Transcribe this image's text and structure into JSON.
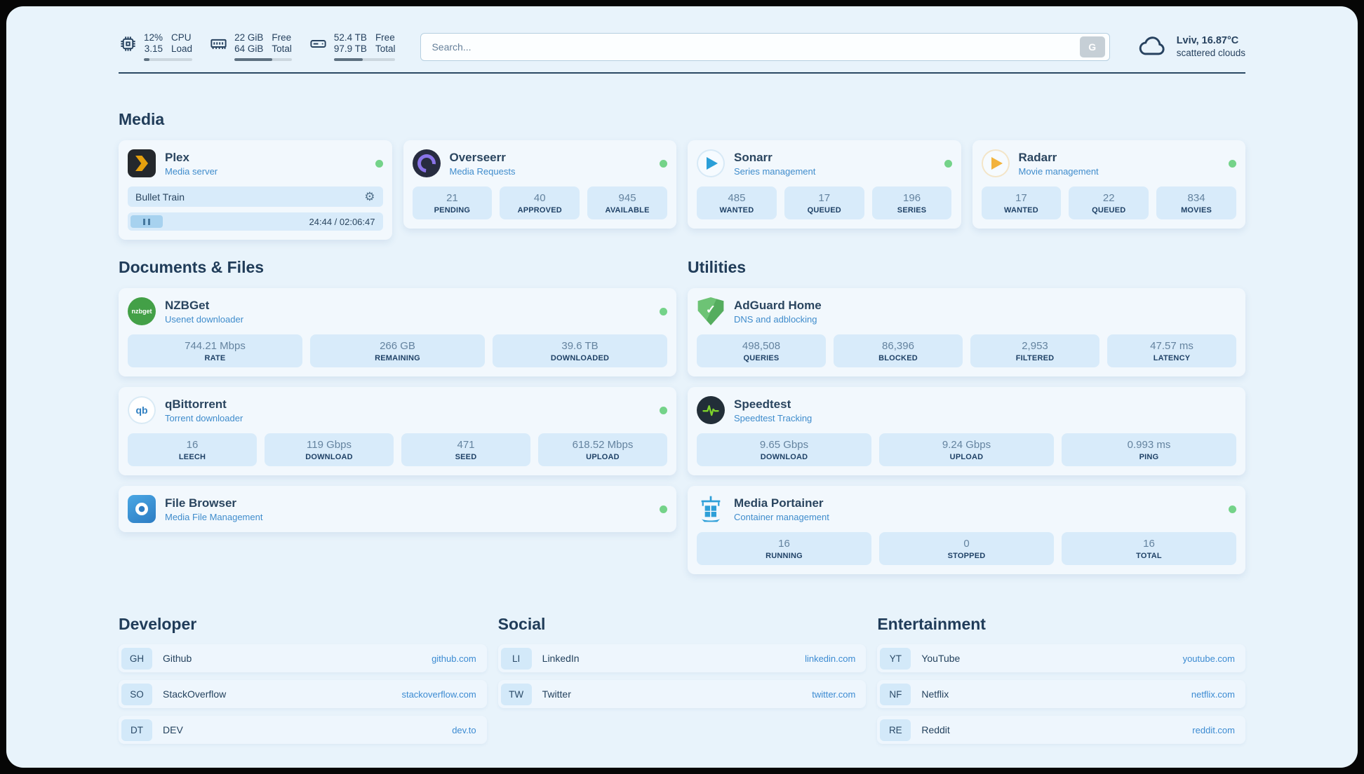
{
  "topbar": {
    "cpu": {
      "value1": "12%",
      "label1": "CPU",
      "value2": "3.15",
      "label2": "Load",
      "progress": 12
    },
    "memory": {
      "value1": "22 GiB",
      "label1": "Free",
      "value2": "64 GiB",
      "label2": "Total",
      "progress": 66
    },
    "disk": {
      "value1": "52.4 TB",
      "label1": "Free",
      "value2": "97.9 TB",
      "label2": "Total",
      "progress": 47
    },
    "search": {
      "placeholder": "Search...",
      "button_label": "G"
    },
    "weather": {
      "location": "Lviv, 16.87°C",
      "condition": "scattered clouds"
    }
  },
  "sections": {
    "media": "Media",
    "documents": "Documents & Files",
    "utilities": "Utilities",
    "developer": "Developer",
    "social": "Social",
    "entertainment": "Entertainment"
  },
  "apps": {
    "plex": {
      "title": "Plex",
      "subtitle": "Media server",
      "now_playing": "Bullet Train",
      "time": "24:44 / 02:06:47"
    },
    "overseerr": {
      "title": "Overseerr",
      "subtitle": "Media Requests",
      "stats": [
        {
          "value": "21",
          "label": "PENDING"
        },
        {
          "value": "40",
          "label": "APPROVED"
        },
        {
          "value": "945",
          "label": "AVAILABLE"
        }
      ]
    },
    "sonarr": {
      "title": "Sonarr",
      "subtitle": "Series management",
      "stats": [
        {
          "value": "485",
          "label": "WANTED"
        },
        {
          "value": "17",
          "label": "QUEUED"
        },
        {
          "value": "196",
          "label": "SERIES"
        }
      ]
    },
    "radarr": {
      "title": "Radarr",
      "subtitle": "Movie management",
      "stats": [
        {
          "value": "17",
          "label": "WANTED"
        },
        {
          "value": "22",
          "label": "QUEUED"
        },
        {
          "value": "834",
          "label": "MOVIES"
        }
      ]
    },
    "nzbget": {
      "title": "NZBGet",
      "subtitle": "Usenet downloader",
      "icon_text": "nzbget",
      "stats": [
        {
          "value": "744.21 Mbps",
          "label": "RATE"
        },
        {
          "value": "266 GB",
          "label": "REMAINING"
        },
        {
          "value": "39.6 TB",
          "label": "DOWNLOADED"
        }
      ]
    },
    "qbittorrent": {
      "title": "qBittorrent",
      "subtitle": "Torrent downloader",
      "icon_text": "qb",
      "stats": [
        {
          "value": "16",
          "label": "LEECH"
        },
        {
          "value": "119 Gbps",
          "label": "DOWNLOAD"
        },
        {
          "value": "471",
          "label": "SEED"
        },
        {
          "value": "618.52 Mbps",
          "label": "UPLOAD"
        }
      ]
    },
    "filebrowser": {
      "title": "File Browser",
      "subtitle": "Media File Management"
    },
    "adguard": {
      "title": "AdGuard Home",
      "subtitle": "DNS and adblocking",
      "stats": [
        {
          "value": "498,508",
          "label": "QUERIES"
        },
        {
          "value": "86,396",
          "label": "BLOCKED"
        },
        {
          "value": "2,953",
          "label": "FILTERED"
        },
        {
          "value": "47.57 ms",
          "label": "LATENCY"
        }
      ]
    },
    "speedtest": {
      "title": "Speedtest",
      "subtitle": "Speedtest Tracking",
      "stats": [
        {
          "value": "9.65 Gbps",
          "label": "DOWNLOAD"
        },
        {
          "value": "9.24 Gbps",
          "label": "UPLOAD"
        },
        {
          "value": "0.993 ms",
          "label": "PING"
        }
      ]
    },
    "portainer": {
      "title": "Media Portainer",
      "subtitle": "Container management",
      "stats": [
        {
          "value": "16",
          "label": "RUNNING"
        },
        {
          "value": "0",
          "label": "STOPPED"
        },
        {
          "value": "16",
          "label": "TOTAL"
        }
      ]
    }
  },
  "bookmarks": {
    "developer": [
      {
        "abbr": "GH",
        "name": "Github",
        "url": "github.com"
      },
      {
        "abbr": "SO",
        "name": "StackOverflow",
        "url": "stackoverflow.com"
      },
      {
        "abbr": "DT",
        "name": "DEV",
        "url": "dev.to"
      }
    ],
    "social": [
      {
        "abbr": "LI",
        "name": "LinkedIn",
        "url": "linkedin.com"
      },
      {
        "abbr": "TW",
        "name": "Twitter",
        "url": "twitter.com"
      }
    ],
    "entertainment": [
      {
        "abbr": "YT",
        "name": "YouTube",
        "url": "youtube.com"
      },
      {
        "abbr": "NF",
        "name": "Netflix",
        "url": "netflix.com"
      },
      {
        "abbr": "RE",
        "name": "Reddit",
        "url": "reddit.com"
      }
    ]
  }
}
